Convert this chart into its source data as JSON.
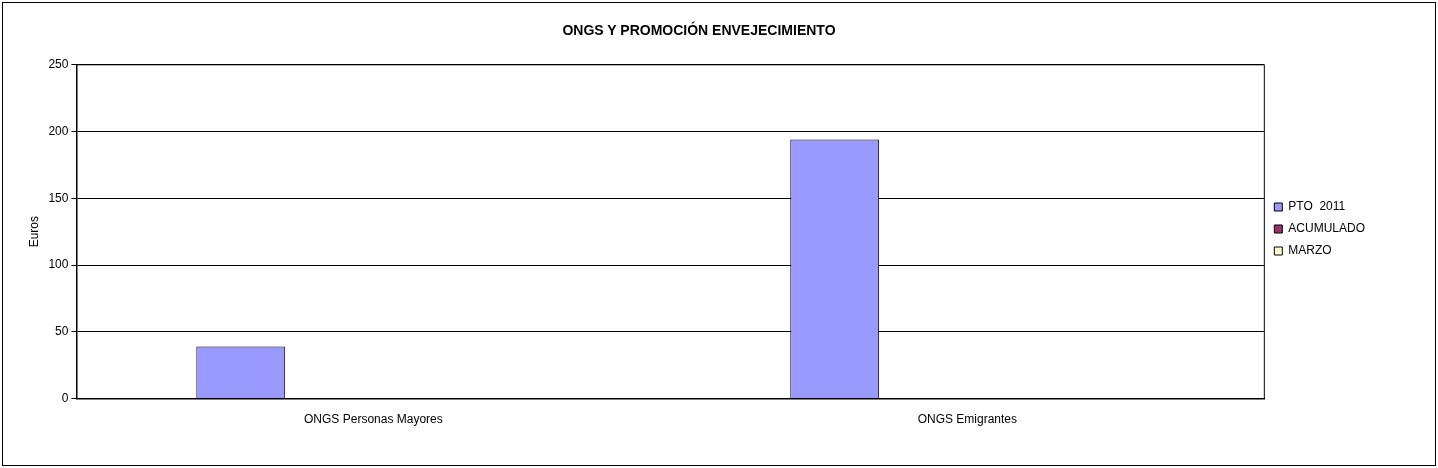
{
  "chart_data": {
    "type": "bar",
    "title": "ONGS Y PROMOCIÓN ENVEJECIMIENTO",
    "ylabel": "Euros",
    "categories": [
      "ONGS Personas Mayores",
      "ONGS Emigrantes"
    ],
    "series": [
      {
        "name": "PTO  2011",
        "color": "#9999ff",
        "values": [
          39,
          194
        ]
      },
      {
        "name": "ACUMULADO",
        "color": "#993366",
        "values": [
          0,
          0
        ]
      },
      {
        "name": "MARZO",
        "color": "#ffffcc",
        "values": [
          0,
          0
        ]
      }
    ],
    "ylim": [
      0,
      250
    ],
    "yticks": [
      0,
      50,
      100,
      150,
      200,
      250
    ],
    "grid": "y",
    "legend": "right"
  }
}
